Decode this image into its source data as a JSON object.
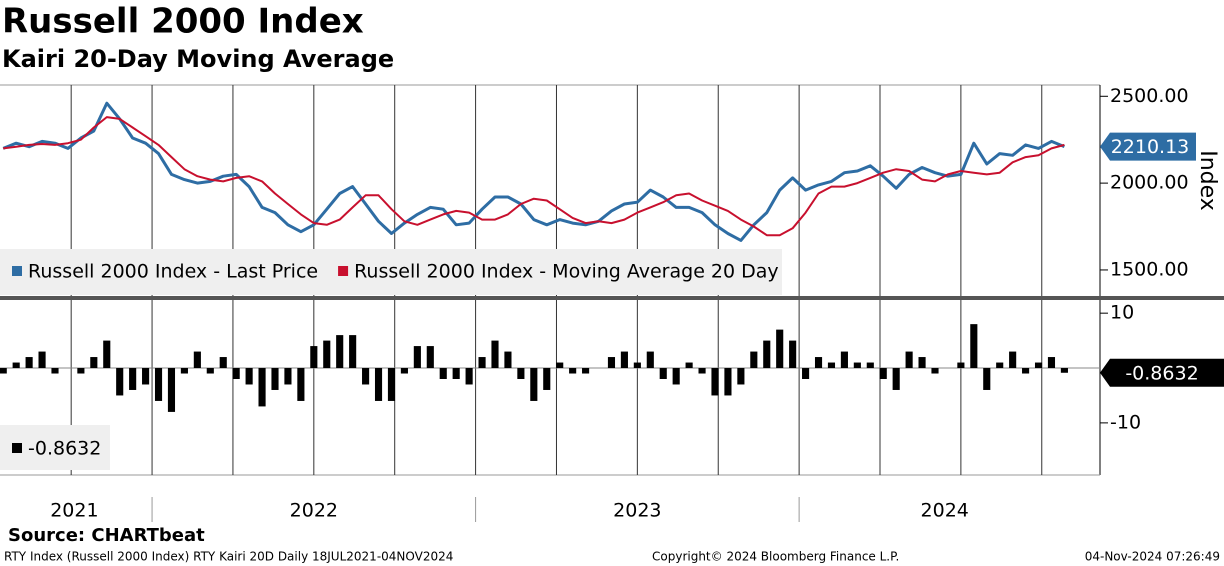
{
  "header": {
    "title": "Russell 2000 Index",
    "subtitle": "Kairi 20-Day Moving Average"
  },
  "footer": {
    "source": "Source: CHARTbeat",
    "description": "RTY Index (Russell 2000 Index) RTY Kairi 20D  Daily 18JUL2021-04NOV2024",
    "copyright": "Copyright© 2024 Bloomberg Finance L.P.",
    "timestamp": "04-Nov-2024 07:26:49"
  },
  "chart_data": [
    {
      "type": "line",
      "y_axis_label": "Index",
      "legend": "bottom-left",
      "xlim": [
        2021.53,
        2024.93
      ],
      "ylim": [
        1350,
        2565
      ],
      "yticks": [
        {
          "value": 1500,
          "label": "1500.00"
        },
        {
          "value": 2000,
          "label": "2000.00"
        },
        {
          "value": 2500,
          "label": "2500.00"
        }
      ],
      "xgrid": [
        2021.75,
        2022.0,
        2022.25,
        2022.5,
        2022.75,
        2023.0,
        2023.25,
        2023.5,
        2023.75,
        2024.0,
        2024.25,
        2024.5,
        2024.75
      ],
      "x": [
        2021.54,
        2021.58,
        2021.62,
        2021.66,
        2021.7,
        2021.74,
        2021.78,
        2021.82,
        2021.86,
        2021.9,
        2021.94,
        2021.98,
        2022.02,
        2022.06,
        2022.1,
        2022.14,
        2022.18,
        2022.22,
        2022.26,
        2022.3,
        2022.34,
        2022.38,
        2022.42,
        2022.46,
        2022.5,
        2022.54,
        2022.58,
        2022.62,
        2022.66,
        2022.7,
        2022.74,
        2022.78,
        2022.82,
        2022.86,
        2022.9,
        2022.94,
        2022.98,
        2023.02,
        2023.06,
        2023.1,
        2023.14,
        2023.18,
        2023.22,
        2023.26,
        2023.3,
        2023.34,
        2023.38,
        2023.42,
        2023.46,
        2023.5,
        2023.54,
        2023.58,
        2023.62,
        2023.66,
        2023.7,
        2023.74,
        2023.78,
        2023.82,
        2023.86,
        2023.9,
        2023.94,
        2023.98,
        2024.02,
        2024.06,
        2024.1,
        2024.14,
        2024.18,
        2024.22,
        2024.26,
        2024.3,
        2024.34,
        2024.38,
        2024.42,
        2024.46,
        2024.5,
        2024.54,
        2024.58,
        2024.62,
        2024.66,
        2024.7,
        2024.74,
        2024.78,
        2024.82
      ],
      "series": [
        {
          "name": "Russell 2000 Index - Last Price",
          "color": "#2e6da4",
          "width": 3,
          "values": [
            2200,
            2230,
            2210,
            2240,
            2230,
            2200,
            2260,
            2300,
            2460,
            2370,
            2260,
            2230,
            2170,
            2050,
            2020,
            2000,
            2010,
            2040,
            2050,
            1980,
            1860,
            1830,
            1760,
            1720,
            1760,
            1850,
            1940,
            1980,
            1880,
            1780,
            1710,
            1770,
            1820,
            1860,
            1850,
            1760,
            1770,
            1850,
            1920,
            1920,
            1880,
            1790,
            1760,
            1790,
            1770,
            1760,
            1780,
            1840,
            1880,
            1890,
            1960,
            1920,
            1860,
            1860,
            1830,
            1760,
            1710,
            1670,
            1760,
            1830,
            1960,
            2030,
            1960,
            1990,
            2010,
            2060,
            2070,
            2100,
            2040,
            1970,
            2050,
            2090,
            2060,
            2040,
            2050,
            2230,
            2110,
            2170,
            2160,
            2220,
            2200,
            2240,
            2210.13
          ]
        },
        {
          "name": "Russell 2000 Index - Moving Average 20 Day",
          "color": "#c8102e",
          "width": 2,
          "values": [
            2200,
            2210,
            2220,
            2225,
            2220,
            2230,
            2250,
            2320,
            2380,
            2370,
            2320,
            2270,
            2220,
            2150,
            2080,
            2040,
            2020,
            2010,
            2030,
            2040,
            2010,
            1940,
            1880,
            1820,
            1770,
            1760,
            1790,
            1860,
            1930,
            1930,
            1850,
            1780,
            1760,
            1790,
            1820,
            1840,
            1830,
            1790,
            1790,
            1820,
            1880,
            1910,
            1900,
            1850,
            1800,
            1770,
            1780,
            1770,
            1790,
            1830,
            1860,
            1890,
            1930,
            1940,
            1900,
            1870,
            1840,
            1790,
            1750,
            1700,
            1700,
            1740,
            1830,
            1940,
            1980,
            1980,
            2000,
            2030,
            2060,
            2080,
            2070,
            2020,
            2010,
            2050,
            2070,
            2060,
            2050,
            2060,
            2120,
            2150,
            2160,
            2200,
            2220
          ]
        }
      ]
    },
    {
      "type": "bar",
      "legend": "bottom-left",
      "xlim": [
        2021.53,
        2024.93
      ],
      "ylim": [
        -19.5,
        12.4
      ],
      "yticks": [
        -10,
        10
      ],
      "xgrid": [
        2021.75,
        2022.0,
        2022.25,
        2022.5,
        2022.75,
        2023.0,
        2023.25,
        2023.5,
        2023.75,
        2024.0,
        2024.25,
        2024.5,
        2024.75
      ],
      "xticks": [
        {
          "value": 2021.76,
          "label": "2021"
        },
        {
          "value": 2022.5,
          "label": "2022"
        },
        {
          "value": 2023.5,
          "label": "2023"
        },
        {
          "value": 2024.45,
          "label": "2024"
        }
      ],
      "xseparators": [
        2022,
        2023,
        2024
      ],
      "x": [
        2021.54,
        2021.58,
        2021.62,
        2021.66,
        2021.7,
        2021.74,
        2021.78,
        2021.82,
        2021.86,
        2021.9,
        2021.94,
        2021.98,
        2022.02,
        2022.06,
        2022.1,
        2022.14,
        2022.18,
        2022.22,
        2022.26,
        2022.3,
        2022.34,
        2022.38,
        2022.42,
        2022.46,
        2022.5,
        2022.54,
        2022.58,
        2022.62,
        2022.66,
        2022.7,
        2022.74,
        2022.78,
        2022.82,
        2022.86,
        2022.9,
        2022.94,
        2022.98,
        2023.02,
        2023.06,
        2023.1,
        2023.14,
        2023.18,
        2023.22,
        2023.26,
        2023.3,
        2023.34,
        2023.38,
        2023.42,
        2023.46,
        2023.5,
        2023.54,
        2023.58,
        2023.62,
        2023.66,
        2023.7,
        2023.74,
        2023.78,
        2023.82,
        2023.86,
        2023.9,
        2023.94,
        2023.98,
        2024.02,
        2024.06,
        2024.1,
        2024.14,
        2024.18,
        2024.22,
        2024.26,
        2024.3,
        2024.34,
        2024.38,
        2024.42,
        2024.46,
        2024.5,
        2024.54,
        2024.58,
        2024.62,
        2024.66,
        2024.7,
        2024.74,
        2024.78,
        2024.82
      ],
      "series": [
        {
          "color": "#000000",
          "values": [
            -1,
            1,
            2,
            3,
            -1,
            0,
            -1,
            2,
            5,
            -5,
            -4,
            -3,
            -6,
            -8,
            -1,
            3,
            -1,
            2,
            -2,
            -3,
            -7,
            -4,
            -3,
            -6,
            4,
            5,
            6,
            6,
            -3,
            -6,
            -6,
            -1,
            4,
            4,
            -2,
            -2,
            -3,
            2,
            5,
            3,
            -2,
            -6,
            -4,
            1,
            -1,
            -1,
            0,
            2,
            3,
            1,
            3,
            -2,
            -3,
            1,
            -1,
            -5,
            -5,
            -3,
            3,
            5,
            7,
            5,
            -2,
            2,
            1,
            3,
            1,
            1,
            -2,
            -4,
            3,
            2,
            -1,
            0,
            1,
            8,
            -4,
            1,
            3,
            -1,
            1,
            2,
            -0.8632
          ]
        }
      ]
    }
  ]
}
